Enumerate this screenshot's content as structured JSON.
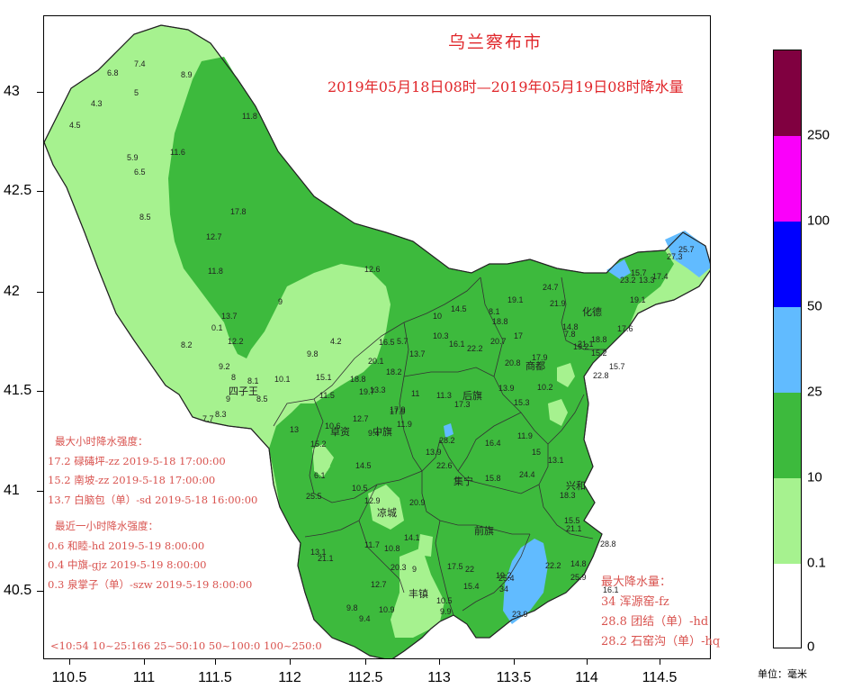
{
  "title": "乌兰察布市",
  "subtitle": "2019年05月18日08时—2019年05月19日08时降水量",
  "axes": {
    "x_ticks": [
      "110.5",
      "111",
      "111.5",
      "112",
      "112.5",
      "113",
      "113.5",
      "114",
      "114.5"
    ],
    "y_ticks": [
      "43",
      "42.5",
      "42",
      "41.5",
      "41",
      "40.5"
    ]
  },
  "legend": {
    "unit": "单位：毫米",
    "labels": [
      "0",
      "0.1",
      "10",
      "25",
      "50",
      "100",
      "250"
    ],
    "colors": [
      "#ffffff",
      "#a6f28f",
      "#3dba3d",
      "#61bbff",
      "#0000ff",
      "#fa00fa",
      "#800040"
    ]
  },
  "max_hour_intensity": {
    "heading": "最大小时降水强度：",
    "items": [
      "17.2 碌碡坪-zz 2019-5-18 17:00:00",
      "15.2 南坡-zz 2019-5-18 17:00:00",
      "13.7 白脑包（单）-sd 2019-5-18 16:00:00"
    ]
  },
  "recent_hour_intensity": {
    "heading": "最近一小时降水强度：",
    "items": [
      "0.6 和睦-hd 2019-5-19 8:00:00",
      "0.4 中旗-gjz 2019-5-19 8:00:00",
      "0.3 泉掌子（单）-szw 2019-5-19 8:00:00"
    ]
  },
  "max_precip": {
    "heading": "最大降水量：",
    "items": [
      "34 浑源窑-fz",
      "28.8 团结（单）-hd",
      "28.2 石窑沟（单）-hq"
    ]
  },
  "summary": "<10:54 10~25:166 25~50:10 50~100:0 100~250:0",
  "places": [
    "四子王",
    "中旗",
    "后旗",
    "商都",
    "化德",
    "集宁",
    "凉城",
    "前旗",
    "丰镇",
    "兴和",
    "卓资"
  ],
  "stations": [
    "7.4",
    "6.8",
    "8.9",
    "4.3",
    "5",
    "4.5",
    "5.9",
    "6.5",
    "11.6",
    "11.8",
    "8.5",
    "17.8",
    "12.7",
    "11.8",
    "12.6",
    "9",
    "13.7",
    "0.1",
    "12.2",
    "8.2",
    "4.2",
    "9.8",
    "9.2",
    "8",
    "8.1",
    "8.5",
    "9",
    "10.1",
    "7.7",
    "8.3",
    "16.5",
    "5.7",
    "20.1",
    "18.2",
    "15.1",
    "18.8",
    "13.3",
    "11.5",
    "12.7",
    "13.7",
    "10.3",
    "11",
    "16.1",
    "14.5",
    "8.1",
    "18.8",
    "22.2",
    "19.1",
    "17.9",
    "17",
    "20.7",
    "24.7",
    "21.9",
    "14.8",
    "19.2",
    "18.8",
    "10",
    "11.3",
    "17.3",
    "17.9",
    "20.8",
    "13.9",
    "15.3",
    "10.2",
    "22.8",
    "13",
    "10.6",
    "9.4",
    "19.7",
    "17.9",
    "11.9",
    "28.2",
    "15.2",
    "6.1",
    "14.5",
    "13.9",
    "22.6",
    "16.4",
    "11.9",
    "15",
    "13.1",
    "24.4",
    "15.8",
    "10.5",
    "25.5",
    "12.9",
    "20.9",
    "18.3",
    "14.1",
    "21.1",
    "15.5",
    "11.7",
    "10.8",
    "17.5",
    "22",
    "19.2",
    "13.1",
    "21.1",
    "20.3",
    "9",
    "10.9",
    "12.7",
    "9.8",
    "9.4",
    "10.5",
    "9.9",
    "15.4",
    "34",
    "25.4",
    "25.9",
    "23.9",
    "22.2",
    "14.8",
    "16.1",
    "28.8",
    "25.7",
    "27.3",
    "23.2",
    "15.7",
    "17.4",
    "13.3",
    "19.1",
    "21.1",
    "7.8",
    "15.2",
    "17.6",
    "15.7"
  ]
}
